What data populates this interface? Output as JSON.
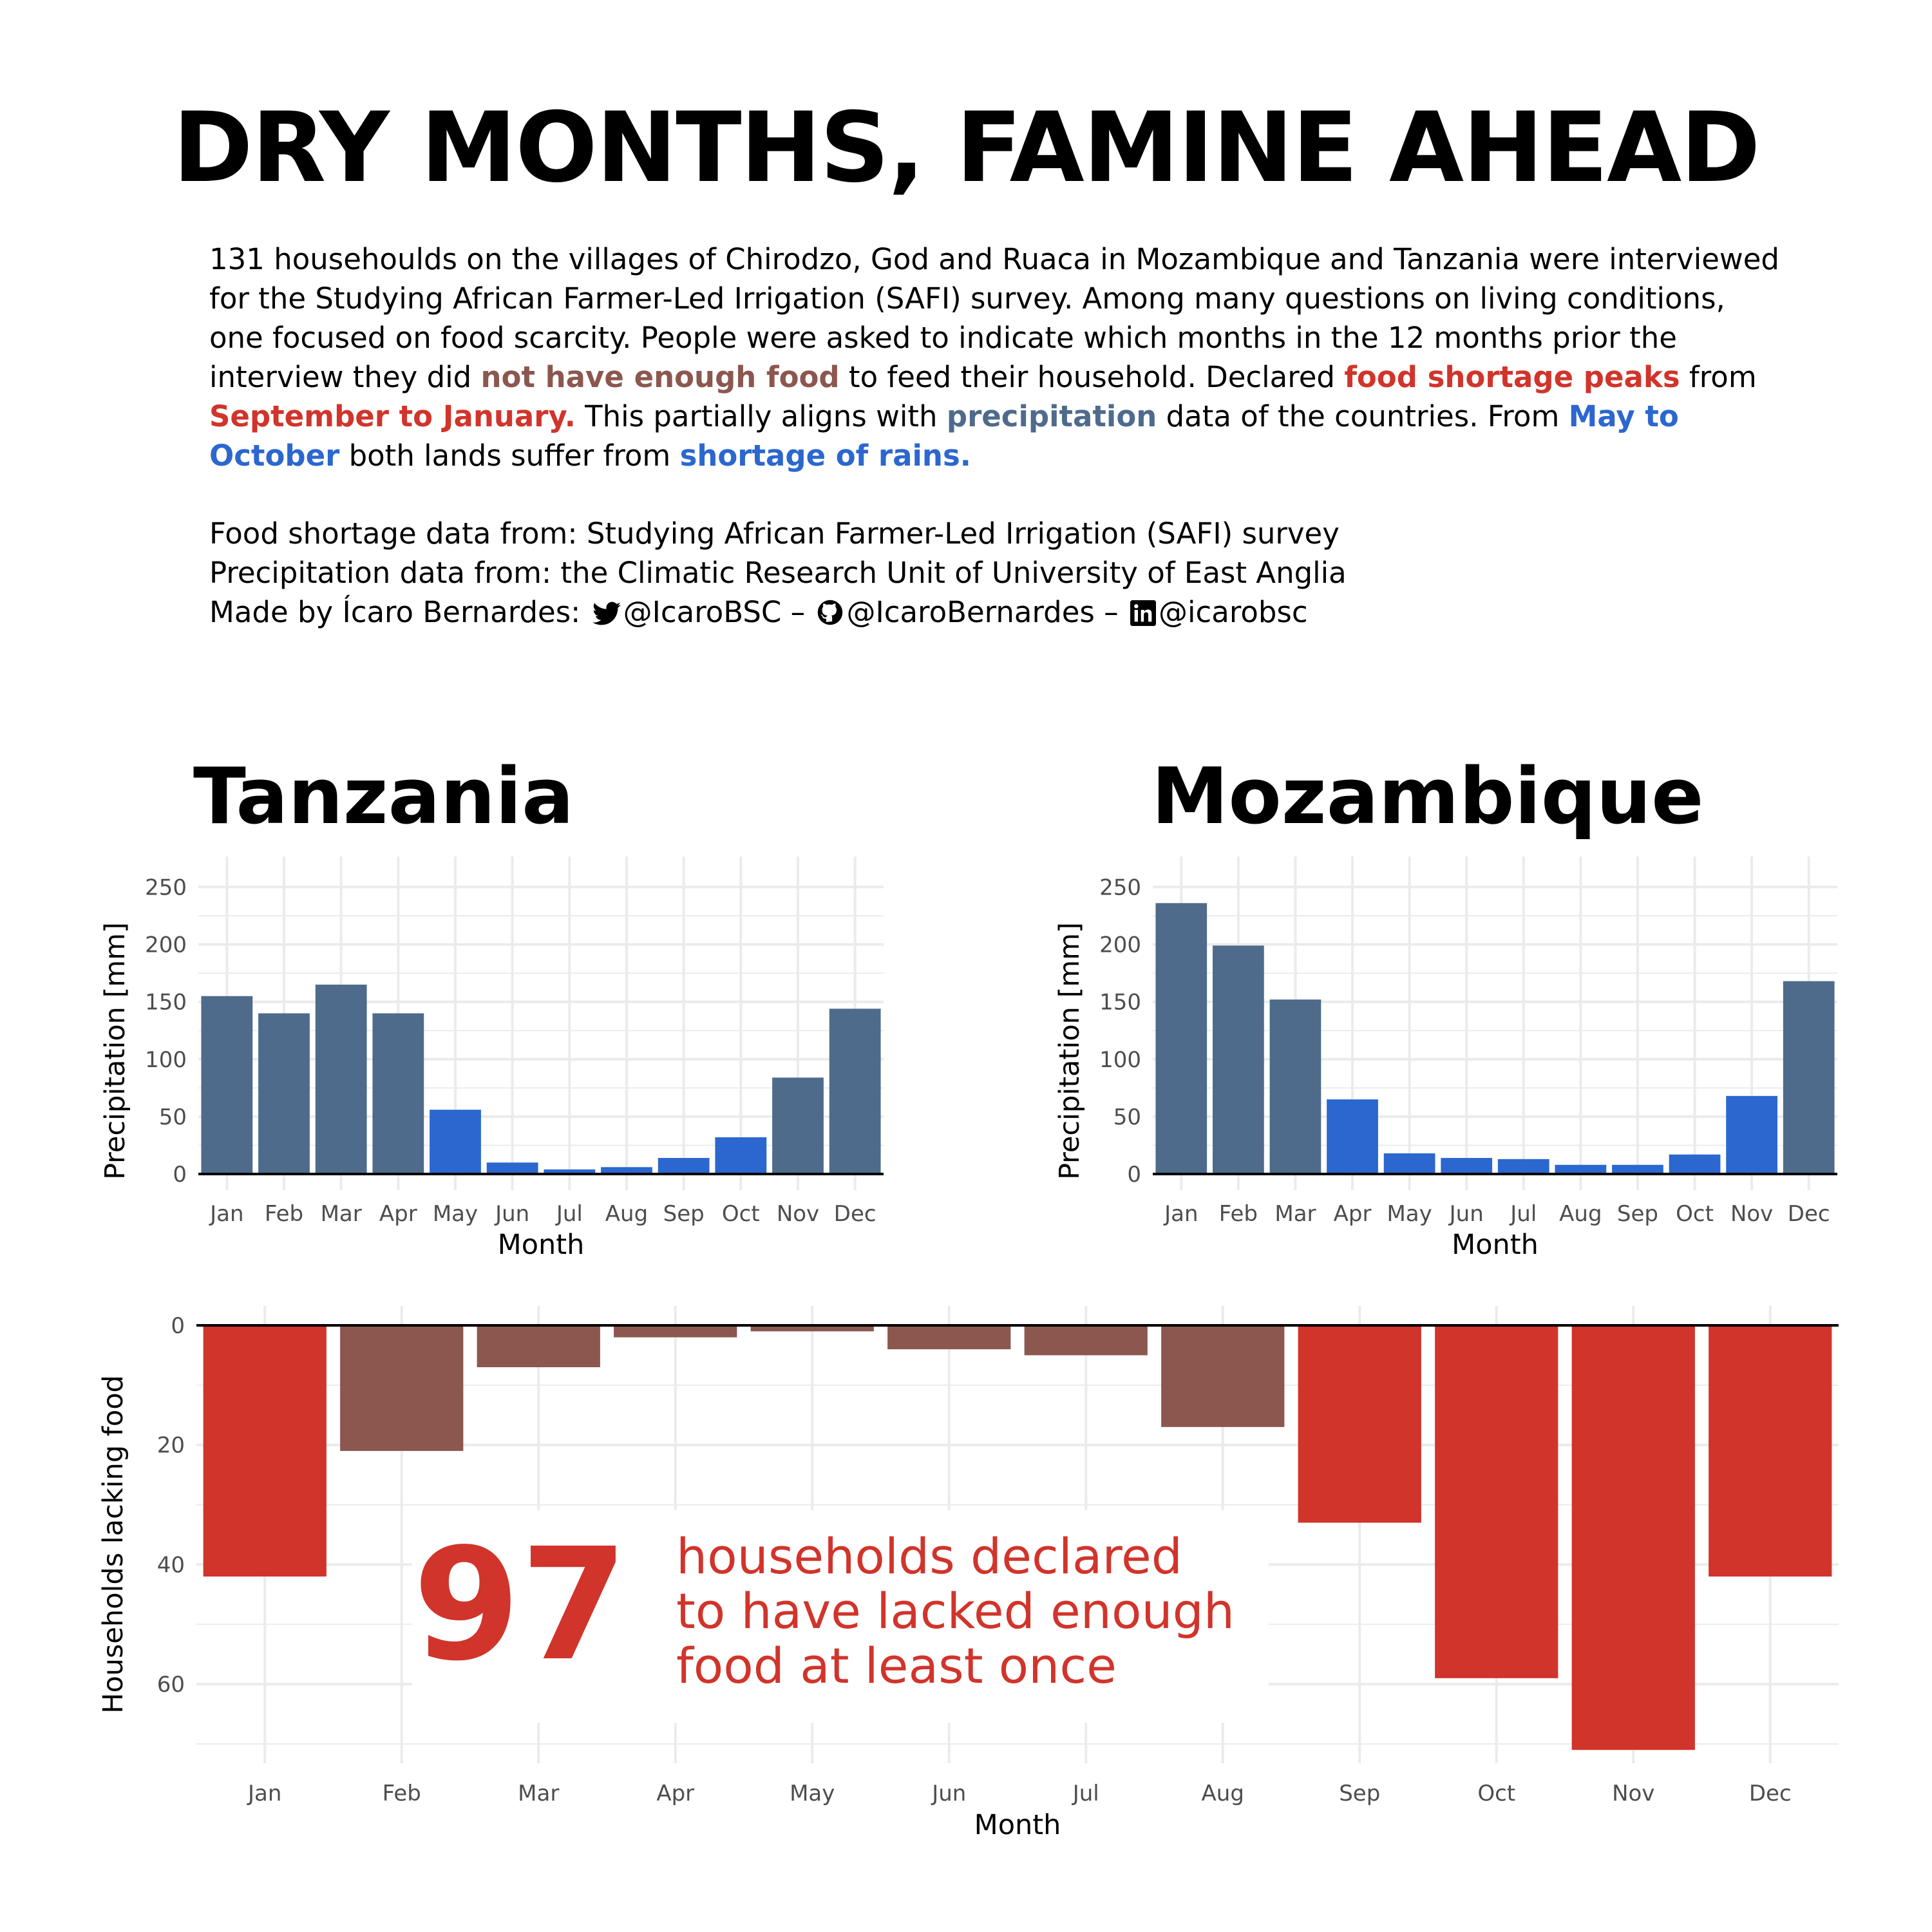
{
  "header": {
    "title": "DRY MONTHS, FAMINE AHEAD",
    "desc": {
      "p1": "131 househoulds on the villages of Chirodzo, God and Ruaca in Mozambique and Tanzania were interviewed for the Studying African Farmer-Led Irrigation (SAFI) survey. Among many questions on living conditions, one focused on food scarcity. People were asked to indicate which months in the 12 months prior the interview they did ",
      "h1": "not have enough food",
      "p2": " to feed their household. Declared ",
      "h2": "food shortage peaks",
      "p3": " from ",
      "h3": "September to January.",
      "p4": " This partially aligns with ",
      "h4": "precipitation",
      "p5": " data of the countries. From ",
      "h5": "May to October",
      "p6": " both lands suffer from ",
      "h6": "shortage of rains."
    },
    "sources": {
      "food": "Food shortage data from: Studying African Farmer-Led Irrigation (SAFI) survey",
      "precip": "Precipitation data from: the Climatic Research Unit of University of East Anglia",
      "made_by": "Made by Ícaro Bernardes:",
      "twitter": "@IcaroBSC –",
      "github": "@IcaroBernardes –",
      "linkedin": "@icarobsc"
    }
  },
  "colors": {
    "precip_normal": "#4E6B8C",
    "precip_dry": "#2B67CF",
    "food_normal": "#8B574F",
    "food_peak": "#D1342B",
    "grid": "#EBEBEB"
  },
  "chart_data": [
    {
      "type": "bar",
      "title": "Tanzania",
      "xlabel": "Month",
      "ylabel": "Precipitation [mm]",
      "categories": [
        "Jan",
        "Feb",
        "Mar",
        "Apr",
        "May",
        "Jun",
        "Jul",
        "Aug",
        "Sep",
        "Oct",
        "Nov",
        "Dec"
      ],
      "values": [
        155,
        140,
        165,
        140,
        56,
        10,
        4,
        6,
        14,
        32,
        84,
        144
      ],
      "highlight": [
        false,
        false,
        false,
        false,
        true,
        true,
        true,
        true,
        true,
        true,
        false,
        false
      ],
      "ylim": [
        0,
        262
      ],
      "yticks": [
        0,
        50,
        100,
        150,
        200,
        250
      ],
      "grid": true
    },
    {
      "type": "bar",
      "title": "Mozambique",
      "xlabel": "Month",
      "ylabel": "Precipitation [mm]",
      "categories": [
        "Jan",
        "Feb",
        "Mar",
        "Apr",
        "May",
        "Jun",
        "Jul",
        "Aug",
        "Sep",
        "Oct",
        "Nov",
        "Dec"
      ],
      "values": [
        236,
        199,
        152,
        65,
        18,
        14,
        13,
        8,
        8,
        17,
        68,
        168
      ],
      "highlight": [
        false,
        false,
        false,
        true,
        true,
        true,
        true,
        true,
        true,
        true,
        true,
        false
      ],
      "ylim": [
        0,
        262
      ],
      "yticks": [
        0,
        50,
        100,
        150,
        200,
        250
      ],
      "grid": true
    },
    {
      "type": "bar",
      "title": "",
      "xlabel": "Month",
      "ylabel": "Households lacking food",
      "categories": [
        "Jan",
        "Feb",
        "Mar",
        "Apr",
        "May",
        "Jun",
        "Jul",
        "Aug",
        "Sep",
        "Oct",
        "Nov",
        "Dec"
      ],
      "values": [
        42,
        21,
        7,
        2,
        1,
        4,
        5,
        17,
        33,
        59,
        71,
        42
      ],
      "highlight": [
        true,
        false,
        false,
        false,
        false,
        false,
        false,
        false,
        true,
        true,
        true,
        true
      ],
      "ylim": [
        0,
        70
      ],
      "yticks": [
        0,
        20,
        40,
        60
      ],
      "y_reversed": true,
      "grid": true,
      "annotation": {
        "number": "97",
        "lines": [
          "households declared",
          "to have lacked enough",
          "food at least once"
        ]
      }
    }
  ]
}
